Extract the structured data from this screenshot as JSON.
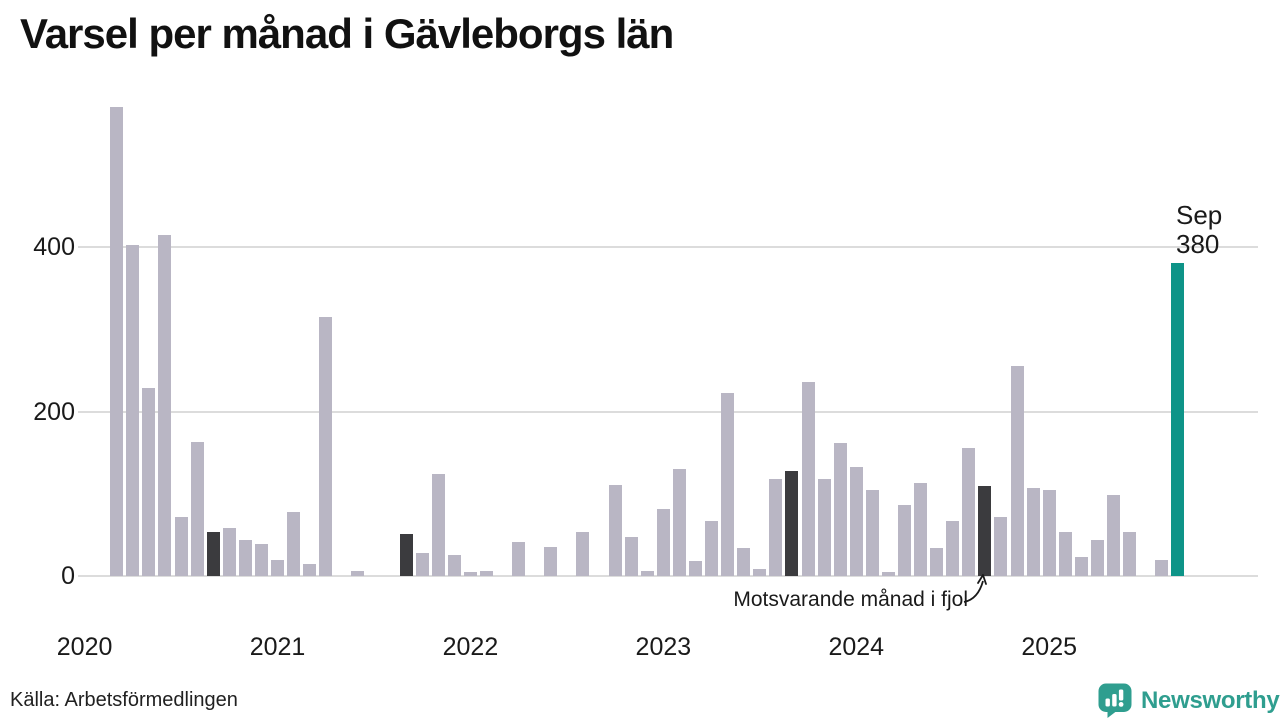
{
  "title": "Varsel per månad i Gävleborgs län",
  "source": "Källa: Arbetsförmedlingen",
  "annotation": {
    "text": "Motsvarande månad i fjol"
  },
  "last_point_label": {
    "month": "Sep",
    "value": "380"
  },
  "logo": {
    "text": "Newsworthy",
    "icon": "newsworthy-speech-bubble-bar-chart-icon"
  },
  "colors": {
    "bar": "#b9b6c4",
    "highlight_bar": "#3b3b3e",
    "current_bar": "#0e9488",
    "gridline": "#dcdcdc",
    "text": "#1a1a1a",
    "logo_teal": "#2f9e8f"
  },
  "chart_data": {
    "type": "bar",
    "title": "Varsel per månad i Gävleborgs län",
    "xlabel": "",
    "ylabel": "",
    "y_ticks": [
      0,
      200,
      400
    ],
    "ylim": [
      0,
      585
    ],
    "grid": "horizontal",
    "year_ticks": [
      "2020",
      "2021",
      "2022",
      "2023",
      "2024",
      "2025"
    ],
    "highlight_same_month": [
      "2020-09",
      "2021-09",
      "2022-09",
      "2023-09",
      "2024-09"
    ],
    "current_month": "2025-09",
    "current_value": 380,
    "months": [
      {
        "m": "2020-01",
        "v": 0
      },
      {
        "m": "2020-02",
        "v": 0
      },
      {
        "m": "2020-03",
        "v": 570
      },
      {
        "m": "2020-04",
        "v": 403
      },
      {
        "m": "2020-05",
        "v": 228
      },
      {
        "m": "2020-06",
        "v": 415
      },
      {
        "m": "2020-07",
        "v": 72
      },
      {
        "m": "2020-08",
        "v": 163
      },
      {
        "m": "2020-09",
        "v": 54
      },
      {
        "m": "2020-10",
        "v": 58
      },
      {
        "m": "2020-11",
        "v": 44
      },
      {
        "m": "2020-12",
        "v": 39
      },
      {
        "m": "2021-01",
        "v": 20
      },
      {
        "m": "2021-02",
        "v": 78
      },
      {
        "m": "2021-03",
        "v": 15
      },
      {
        "m": "2021-04",
        "v": 315
      },
      {
        "m": "2021-05",
        "v": 0
      },
      {
        "m": "2021-06",
        "v": 6
      },
      {
        "m": "2021-07",
        "v": 0
      },
      {
        "m": "2021-08",
        "v": 0
      },
      {
        "m": "2021-09",
        "v": 51
      },
      {
        "m": "2021-10",
        "v": 28
      },
      {
        "m": "2021-11",
        "v": 124
      },
      {
        "m": "2021-12",
        "v": 26
      },
      {
        "m": "2022-01",
        "v": 5
      },
      {
        "m": "2022-02",
        "v": 6
      },
      {
        "m": "2022-03",
        "v": 0
      },
      {
        "m": "2022-04",
        "v": 41
      },
      {
        "m": "2022-05",
        "v": 0
      },
      {
        "m": "2022-06",
        "v": 35
      },
      {
        "m": "2022-07",
        "v": 0
      },
      {
        "m": "2022-08",
        "v": 53
      },
      {
        "m": "2022-09",
        "v": 0
      },
      {
        "m": "2022-10",
        "v": 111
      },
      {
        "m": "2022-11",
        "v": 48
      },
      {
        "m": "2022-12",
        "v": 6
      },
      {
        "m": "2023-01",
        "v": 81
      },
      {
        "m": "2023-02",
        "v": 130
      },
      {
        "m": "2023-03",
        "v": 18
      },
      {
        "m": "2023-04",
        "v": 67
      },
      {
        "m": "2023-05",
        "v": 222
      },
      {
        "m": "2023-06",
        "v": 34
      },
      {
        "m": "2023-07",
        "v": 9
      },
      {
        "m": "2023-08",
        "v": 118
      },
      {
        "m": "2023-09",
        "v": 128
      },
      {
        "m": "2023-10",
        "v": 236
      },
      {
        "m": "2023-11",
        "v": 118
      },
      {
        "m": "2023-12",
        "v": 162
      },
      {
        "m": "2024-01",
        "v": 132
      },
      {
        "m": "2024-02",
        "v": 105
      },
      {
        "m": "2024-03",
        "v": 5
      },
      {
        "m": "2024-04",
        "v": 86
      },
      {
        "m": "2024-05",
        "v": 113
      },
      {
        "m": "2024-06",
        "v": 34
      },
      {
        "m": "2024-07",
        "v": 67
      },
      {
        "m": "2024-08",
        "v": 156
      },
      {
        "m": "2024-09",
        "v": 109
      },
      {
        "m": "2024-10",
        "v": 72
      },
      {
        "m": "2024-11",
        "v": 255
      },
      {
        "m": "2024-12",
        "v": 107
      },
      {
        "m": "2025-01",
        "v": 105
      },
      {
        "m": "2025-02",
        "v": 53
      },
      {
        "m": "2025-03",
        "v": 23
      },
      {
        "m": "2025-04",
        "v": 44
      },
      {
        "m": "2025-05",
        "v": 98
      },
      {
        "m": "2025-06",
        "v": 54
      },
      {
        "m": "2025-07",
        "v": 0
      },
      {
        "m": "2025-08",
        "v": 20
      },
      {
        "m": "2025-09",
        "v": 380
      }
    ]
  }
}
